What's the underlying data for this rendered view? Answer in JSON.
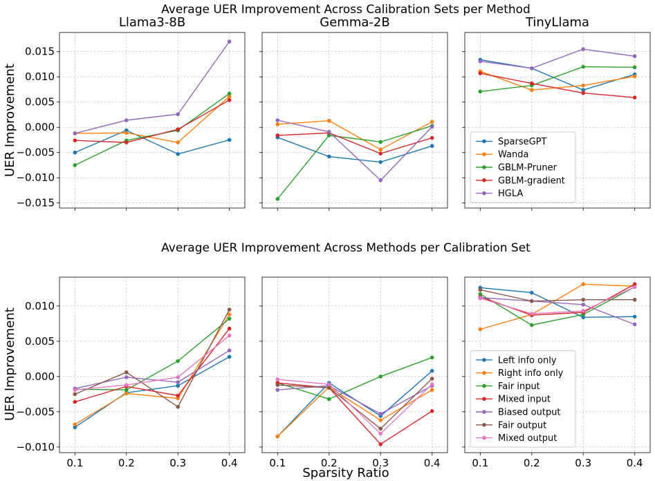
{
  "colors": {
    "blue": "#1f77b4",
    "orange": "#ff7f0e",
    "green": "#2ca02c",
    "red": "#d62728",
    "purple": "#9467bd",
    "brown": "#8c564b",
    "pink": "#e377c2"
  },
  "shared": {
    "xlabel": "Sparsity Ratio",
    "ylabel": "UER Improvement"
  },
  "chart_data": [
    {
      "type": "line",
      "row": 0,
      "suptitle": "Average UER Improvement Across Calibration Sets per Method",
      "ylabel": "UER Improvement",
      "ylim": [
        -0.016,
        0.0188
      ],
      "yticks": [
        -0.015,
        -0.01,
        -0.005,
        0.0,
        0.005,
        0.01,
        0.015
      ],
      "ytick_labels": [
        "−0.015",
        "−0.010",
        "−0.005",
        "0.000",
        "0.005",
        "0.010",
        "0.015"
      ],
      "xlim": [
        0.07,
        0.43
      ],
      "x": [
        0.1,
        0.2,
        0.3,
        0.4
      ],
      "xtick_labels": [],
      "legend_panel": 2,
      "legend_position": "lower-left",
      "legend": [
        "SparseGPT",
        "Wanda",
        "GBLM-Pruner",
        "GBLM-gradient",
        "HGLA"
      ],
      "panels": [
        {
          "title": "Llama3-8B",
          "series": [
            {
              "name": "SparseGPT",
              "color": "blue",
              "values": [
                -0.005,
                -0.0006,
                -0.0053,
                -0.0025
              ]
            },
            {
              "name": "Wanda",
              "color": "orange",
              "values": [
                -0.0012,
                -0.0011,
                -0.003,
                0.0061
              ]
            },
            {
              "name": "GBLM-Pruner",
              "color": "green",
              "values": [
                -0.0075,
                -0.0026,
                -0.0006,
                0.0067
              ]
            },
            {
              "name": "GBLM-gradient",
              "color": "red",
              "values": [
                -0.0026,
                -0.003,
                -0.0004,
                0.0054
              ]
            },
            {
              "name": "HGLA",
              "color": "purple",
              "values": [
                -0.0012,
                0.0014,
                0.0026,
                0.017
              ]
            }
          ]
        },
        {
          "title": "Gemma-2B",
          "series": [
            {
              "name": "SparseGPT",
              "color": "blue",
              "values": [
                -0.002,
                -0.0058,
                -0.0069,
                -0.0037
              ]
            },
            {
              "name": "Wanda",
              "color": "orange",
              "values": [
                0.0006,
                0.0013,
                -0.0044,
                0.0011
              ]
            },
            {
              "name": "GBLM-Pruner",
              "color": "green",
              "values": [
                -0.0142,
                -0.0016,
                -0.0029,
                0.0003
              ]
            },
            {
              "name": "GBLM-gradient",
              "color": "red",
              "values": [
                -0.0016,
                -0.0011,
                -0.0052,
                -0.0021
              ]
            },
            {
              "name": "HGLA",
              "color": "purple",
              "values": [
                0.0014,
                -0.0009,
                -0.0105,
                0.0001
              ]
            }
          ]
        },
        {
          "title": "TinyLlama",
          "series": [
            {
              "name": "SparseGPT",
              "color": "blue",
              "values": [
                0.0134,
                0.0117,
                0.0074,
                0.0105
              ]
            },
            {
              "name": "Wanda",
              "color": "orange",
              "values": [
                0.0111,
                0.0074,
                0.0083,
                0.0101
              ]
            },
            {
              "name": "GBLM-Pruner",
              "color": "green",
              "values": [
                0.0071,
                0.0083,
                0.012,
                0.0119
              ]
            },
            {
              "name": "GBLM-gradient",
              "color": "red",
              "values": [
                0.0107,
                0.0087,
                0.0068,
                0.0059
              ]
            },
            {
              "name": "HGLA",
              "color": "purple",
              "values": [
                0.0131,
                0.0117,
                0.0155,
                0.0141
              ]
            }
          ]
        }
      ]
    },
    {
      "type": "line",
      "row": 1,
      "suptitle": "Average UER Improvement Across Methods per Calibration Set",
      "ylabel": "UER Improvement",
      "ylim": [
        -0.0108,
        0.0141
      ],
      "yticks": [
        -0.01,
        -0.005,
        0.0,
        0.005,
        0.01
      ],
      "ytick_labels": [
        "−0.010",
        "−0.005",
        "0.000",
        "0.005",
        "0.010"
      ],
      "xlim": [
        0.07,
        0.43
      ],
      "x": [
        0.1,
        0.2,
        0.3,
        0.4
      ],
      "xtick_labels": [
        "0.1",
        "0.2",
        "0.3",
        "0.4"
      ],
      "legend_panel": 2,
      "legend_position": "lower-left",
      "legend": [
        "Left info only",
        "Right info only",
        "Fair input",
        "Mixed input",
        "Biased output",
        "Fair output",
        "Mixed output"
      ],
      "panels": [
        {
          "title": "",
          "series": [
            {
              "name": "Left info only",
              "color": "blue",
              "values": [
                -0.0072,
                -0.0023,
                -0.0013,
                0.0028
              ]
            },
            {
              "name": "Right info only",
              "color": "orange",
              "values": [
                -0.0068,
                -0.0024,
                -0.0031,
                0.0088
              ]
            },
            {
              "name": "Fair input",
              "color": "green",
              "values": [
                -0.0018,
                -0.0019,
                0.0022,
                0.0082
              ]
            },
            {
              "name": "Mixed input",
              "color": "red",
              "values": [
                -0.0036,
                -0.0014,
                -0.0027,
                0.0068
              ]
            },
            {
              "name": "Biased output",
              "color": "purple",
              "values": [
                -0.0017,
                -0.0001,
                -0.0008,
                0.0037
              ]
            },
            {
              "name": "Fair output",
              "color": "brown",
              "values": [
                -0.0025,
                0.0006,
                -0.0043,
                0.0095
              ]
            },
            {
              "name": "Mixed output",
              "color": "pink",
              "values": [
                -0.0019,
                -0.0012,
                -0.0001,
                0.0058
              ]
            }
          ]
        },
        {
          "title": "",
          "series": [
            {
              "name": "Left info only",
              "color": "blue",
              "values": [
                -0.0085,
                -0.0009,
                -0.0056,
                0.0008
              ]
            },
            {
              "name": "Right info only",
              "color": "orange",
              "values": [
                -0.0085,
                -0.0015,
                -0.0062,
                -0.0019
              ]
            },
            {
              "name": "Fair input",
              "color": "green",
              "values": [
                -0.0009,
                -0.0032,
                0.0,
                0.0027
              ]
            },
            {
              "name": "Mixed input",
              "color": "red",
              "values": [
                -0.0009,
                -0.0016,
                -0.0096,
                -0.0049
              ]
            },
            {
              "name": "Biased output",
              "color": "purple",
              "values": [
                -0.0019,
                -0.0013,
                -0.0053,
                -0.0013
              ]
            },
            {
              "name": "Fair output",
              "color": "brown",
              "values": [
                -0.0012,
                -0.0016,
                -0.0074,
                -0.0003
              ]
            },
            {
              "name": "Mixed output",
              "color": "pink",
              "values": [
                -0.0004,
                -0.0011,
                -0.0081,
                -0.0011
              ]
            }
          ]
        },
        {
          "title": "",
          "series": [
            {
              "name": "Left info only",
              "color": "blue",
              "values": [
                0.0126,
                0.0119,
                0.0084,
                0.0085
              ]
            },
            {
              "name": "Right info only",
              "color": "orange",
              "values": [
                0.0067,
                0.0088,
                0.0131,
                0.0128
              ]
            },
            {
              "name": "Fair input",
              "color": "green",
              "values": [
                0.0117,
                0.0073,
                0.0088,
                0.0127
              ]
            },
            {
              "name": "Mixed input",
              "color": "red",
              "values": [
                0.0113,
                0.0087,
                0.0091,
                0.0131
              ]
            },
            {
              "name": "Biased output",
              "color": "purple",
              "values": [
                0.0112,
                0.0107,
                0.0102,
                0.0074
              ]
            },
            {
              "name": "Fair output",
              "color": "brown",
              "values": [
                0.0123,
                0.0107,
                0.0109,
                0.0109
              ]
            },
            {
              "name": "Mixed output",
              "color": "pink",
              "values": [
                0.0111,
                0.0089,
                0.0093,
                0.0127
              ]
            }
          ]
        }
      ]
    }
  ]
}
